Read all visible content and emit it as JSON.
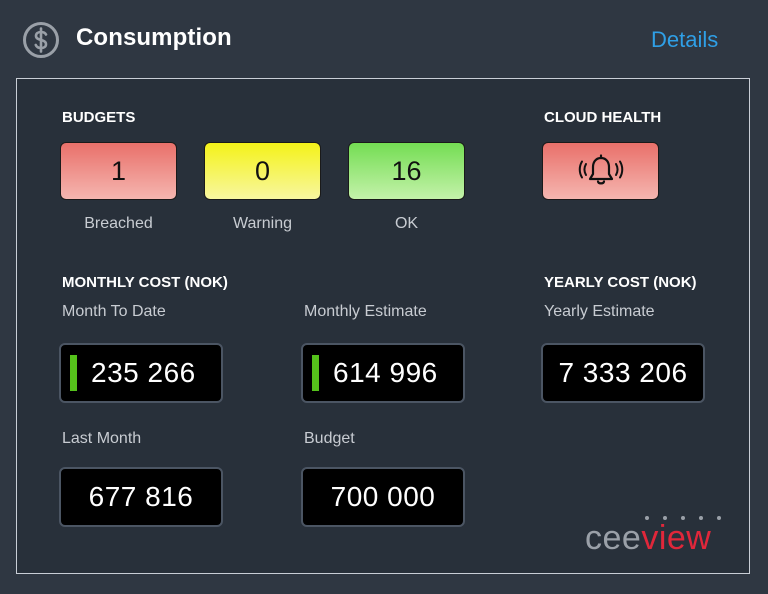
{
  "header": {
    "title": "Consumption",
    "details_label": "Details",
    "icon": "dollar-circle-icon"
  },
  "budgets": {
    "label": "BUDGETS",
    "items": [
      {
        "value": "1",
        "caption": "Breached",
        "color": "#e9706a"
      },
      {
        "value": "0",
        "caption": "Warning",
        "color": "#f4f219"
      },
      {
        "value": "16",
        "caption": "OK",
        "color": "#74dd53"
      }
    ]
  },
  "cloud_health": {
    "label": "CLOUD HEALTH",
    "icon": "alarm-bell-icon",
    "color": "#e9706a"
  },
  "monthly_cost": {
    "label": "MONTHLY COST (NOK)",
    "month_to_date": {
      "label": "Month To Date",
      "value": "235 266"
    },
    "monthly_estimate": {
      "label": "Monthly Estimate",
      "value": "614 996"
    },
    "last_month": {
      "label": "Last Month",
      "value": "677 816"
    },
    "budget": {
      "label": "Budget",
      "value": "700 000"
    },
    "indicator_color": "#55c21b"
  },
  "yearly_cost": {
    "label": "YEARLY COST (NOK)",
    "yearly_estimate": {
      "label": "Yearly Estimate",
      "value": "7 333 206"
    }
  },
  "logo": {
    "part1": "cee",
    "part2": "view",
    "colors": {
      "part1": "#9aa0a8",
      "part2": "#e0273a"
    }
  }
}
